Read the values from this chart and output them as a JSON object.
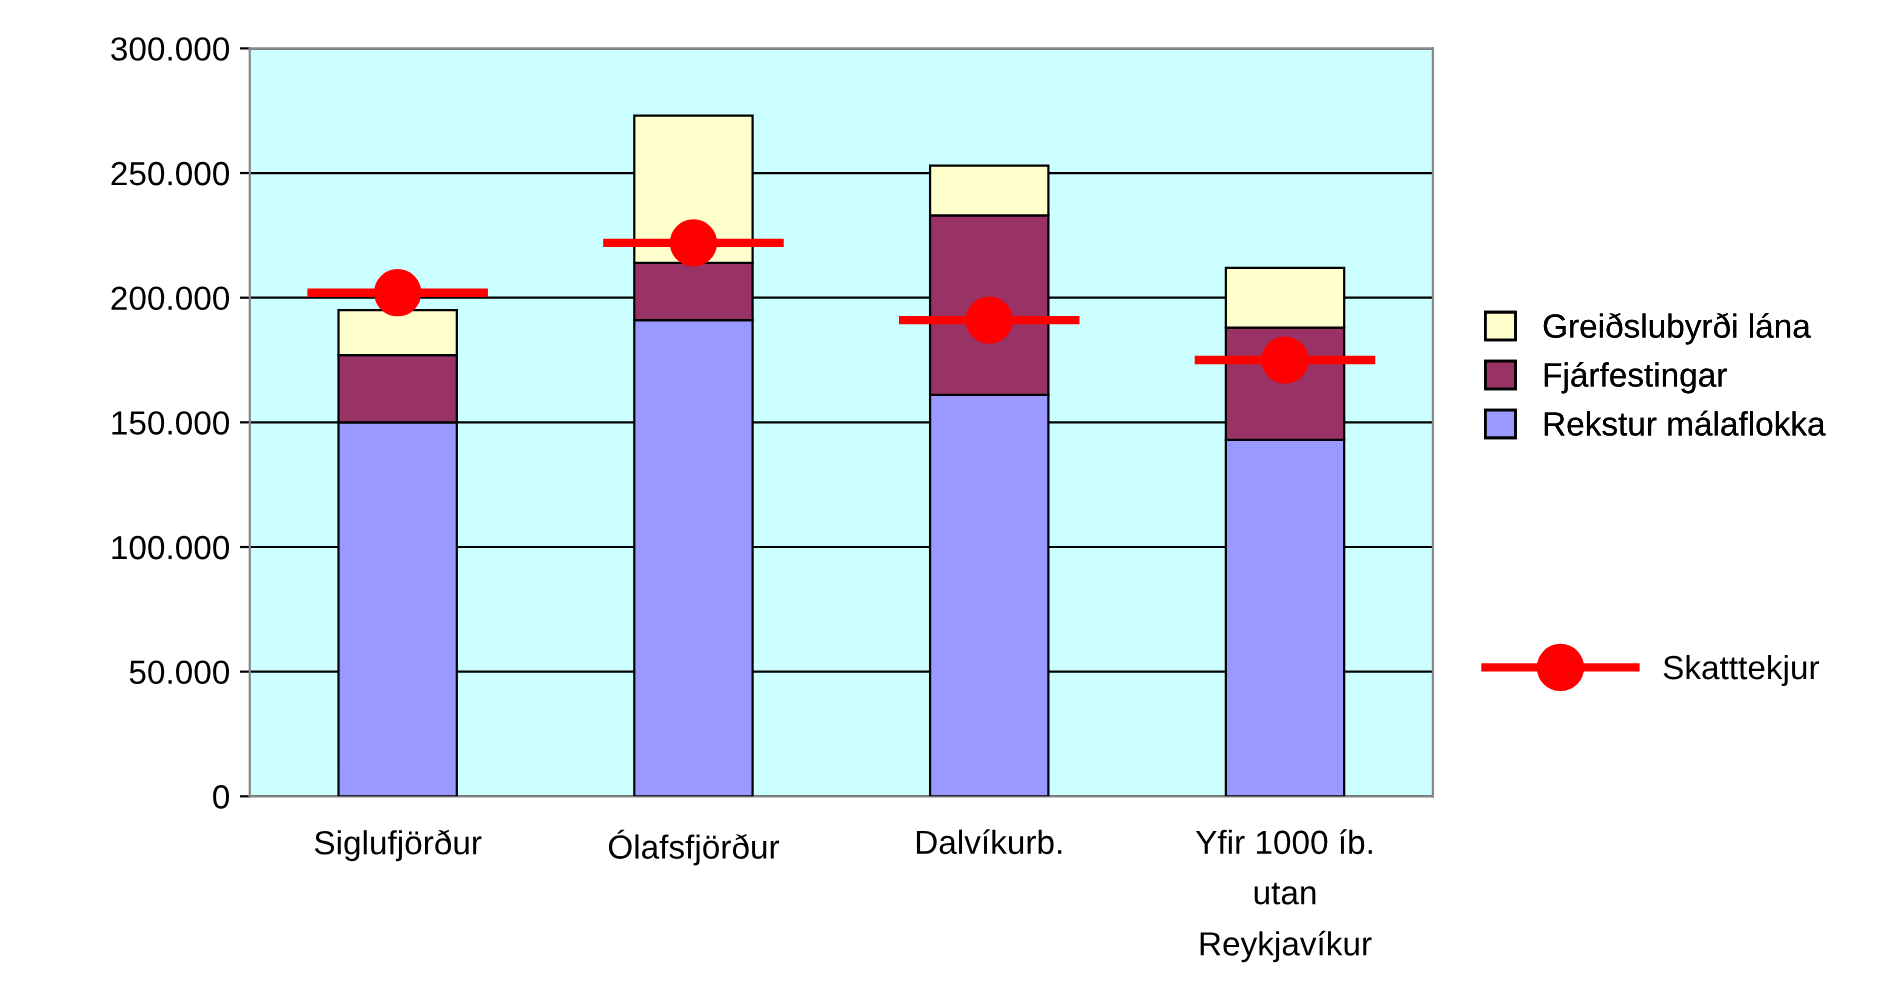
{
  "chart_data": {
    "type": "bar",
    "stacked": true,
    "categories": [
      "Siglufjörður",
      "Ólafsfjörður",
      "Dalvíkurb.",
      "Yfir 1000 íb.\nutan\nReykjavíkur"
    ],
    "series": [
      {
        "name": "Rekstur málaflokka",
        "color": "#9999ff",
        "values": [
          150000,
          191000,
          161000,
          143000
        ]
      },
      {
        "name": "Fjárfestingar",
        "color": "#993366",
        "values": [
          27000,
          23000,
          72000,
          45000
        ]
      },
      {
        "name": "Greiðslubyrði lána",
        "color": "#ffffcc",
        "values": [
          18000,
          59000,
          20000,
          24000
        ]
      },
      {
        "name": "Skatttekjur",
        "type": "scatter",
        "marker": "circle",
        "color": "#ff0000",
        "values": [
          202000,
          222000,
          191000,
          175000
        ]
      }
    ],
    "ylim": [
      0,
      300000
    ],
    "yticks": [
      {
        "value": 0,
        "label": "0"
      },
      {
        "value": 50000,
        "label": "50.000"
      },
      {
        "value": 100000,
        "label": "100.000"
      },
      {
        "value": 150000,
        "label": "150.000"
      },
      {
        "value": 200000,
        "label": "200.000"
      },
      {
        "value": 250000,
        "label": "250.000"
      },
      {
        "value": 300000,
        "label": "300.000"
      }
    ],
    "grid": "y",
    "legend": "right"
  }
}
